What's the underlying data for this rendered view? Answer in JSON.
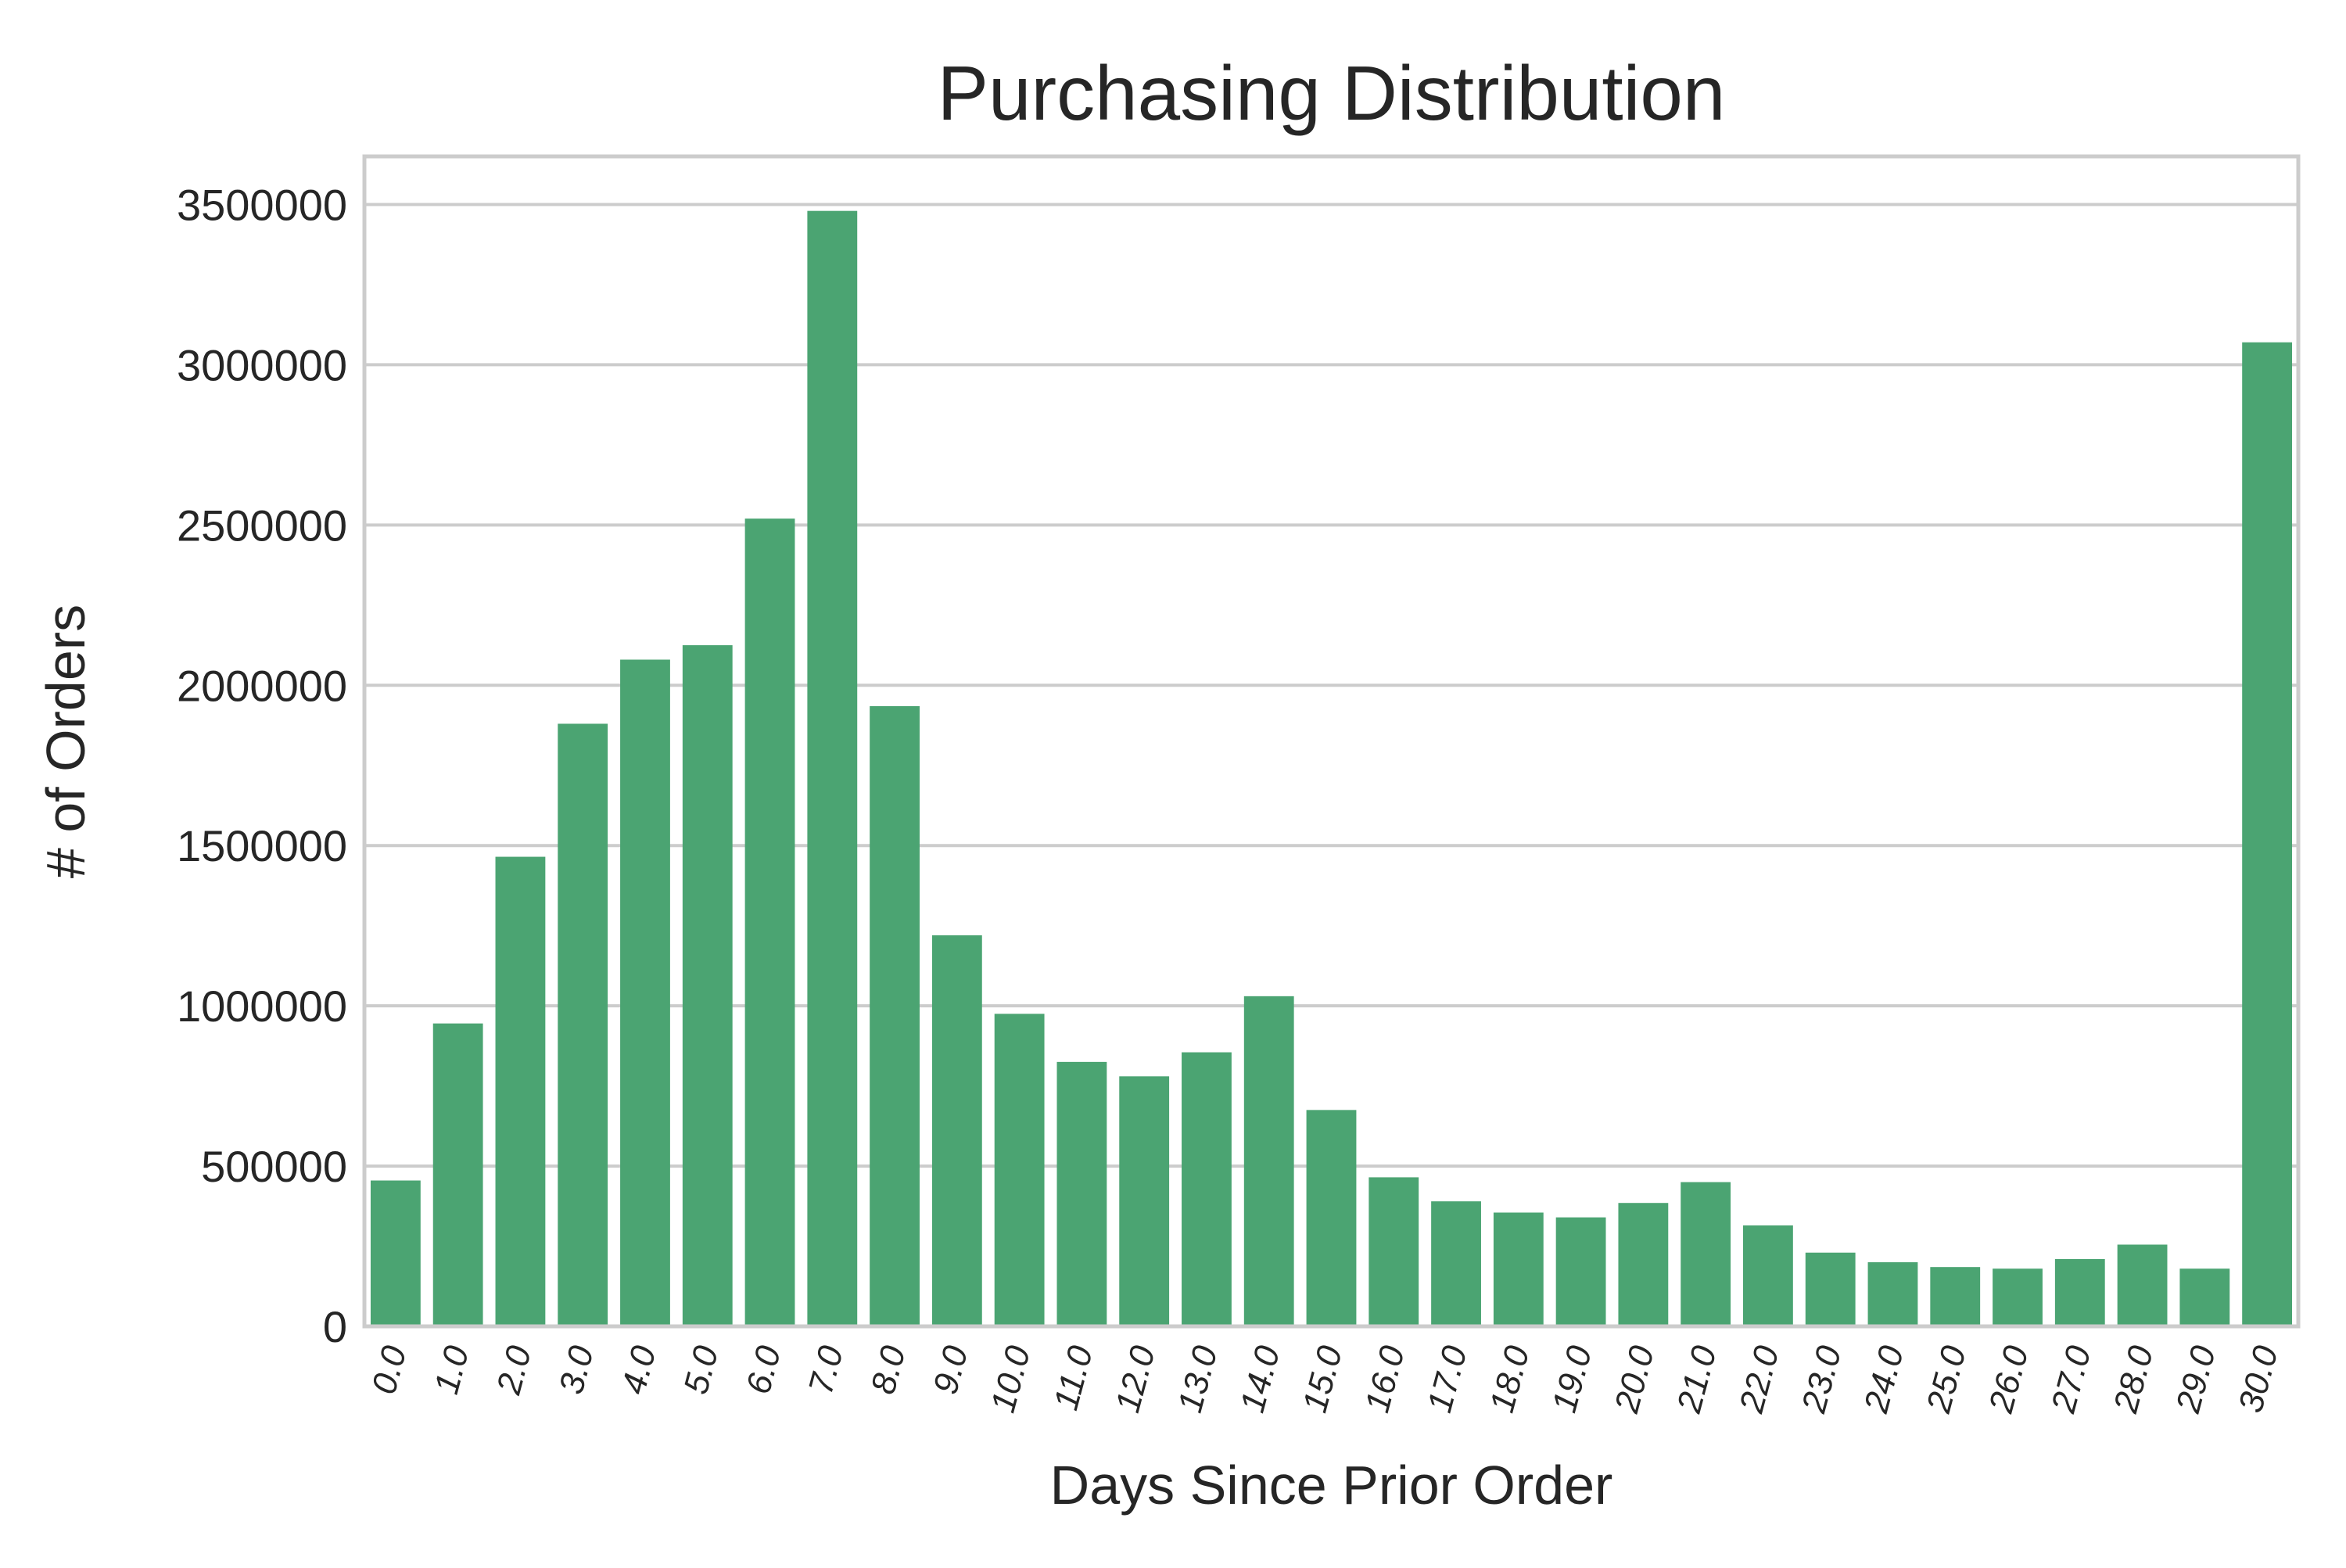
{
  "chart_data": {
    "type": "bar",
    "title": "Purchasing Distribution",
    "xlabel": "Days Since Prior Order",
    "ylabel": "# of Orders",
    "ylim": [
      0,
      3650000
    ],
    "yticks": [
      0,
      500000,
      1000000,
      1500000,
      2000000,
      2500000,
      3000000,
      3500000
    ],
    "ytick_labels": [
      "0",
      "500000",
      "1000000",
      "1500000",
      "2000000",
      "2500000",
      "3000000",
      "3500000"
    ],
    "grid": true,
    "bar_color": "#4ba472",
    "categories": [
      "0.0",
      "1.0",
      "2.0",
      "3.0",
      "4.0",
      "5.0",
      "6.0",
      "7.0",
      "8.0",
      "9.0",
      "10.0",
      "11.0",
      "12.0",
      "13.0",
      "14.0",
      "15.0",
      "16.0",
      "17.0",
      "18.0",
      "19.0",
      "20.0",
      "21.0",
      "22.0",
      "23.0",
      "24.0",
      "25.0",
      "26.0",
      "27.0",
      "28.0",
      "29.0",
      "30.0"
    ],
    "values": [
      455000,
      945000,
      1465000,
      1880000,
      2080000,
      2125000,
      2520000,
      3480000,
      1935000,
      1220000,
      975000,
      825000,
      780000,
      855000,
      1030000,
      675000,
      465000,
      390000,
      355000,
      340000,
      385000,
      450000,
      315000,
      230000,
      200000,
      185000,
      180000,
      210000,
      255000,
      180000,
      3070000
    ]
  }
}
